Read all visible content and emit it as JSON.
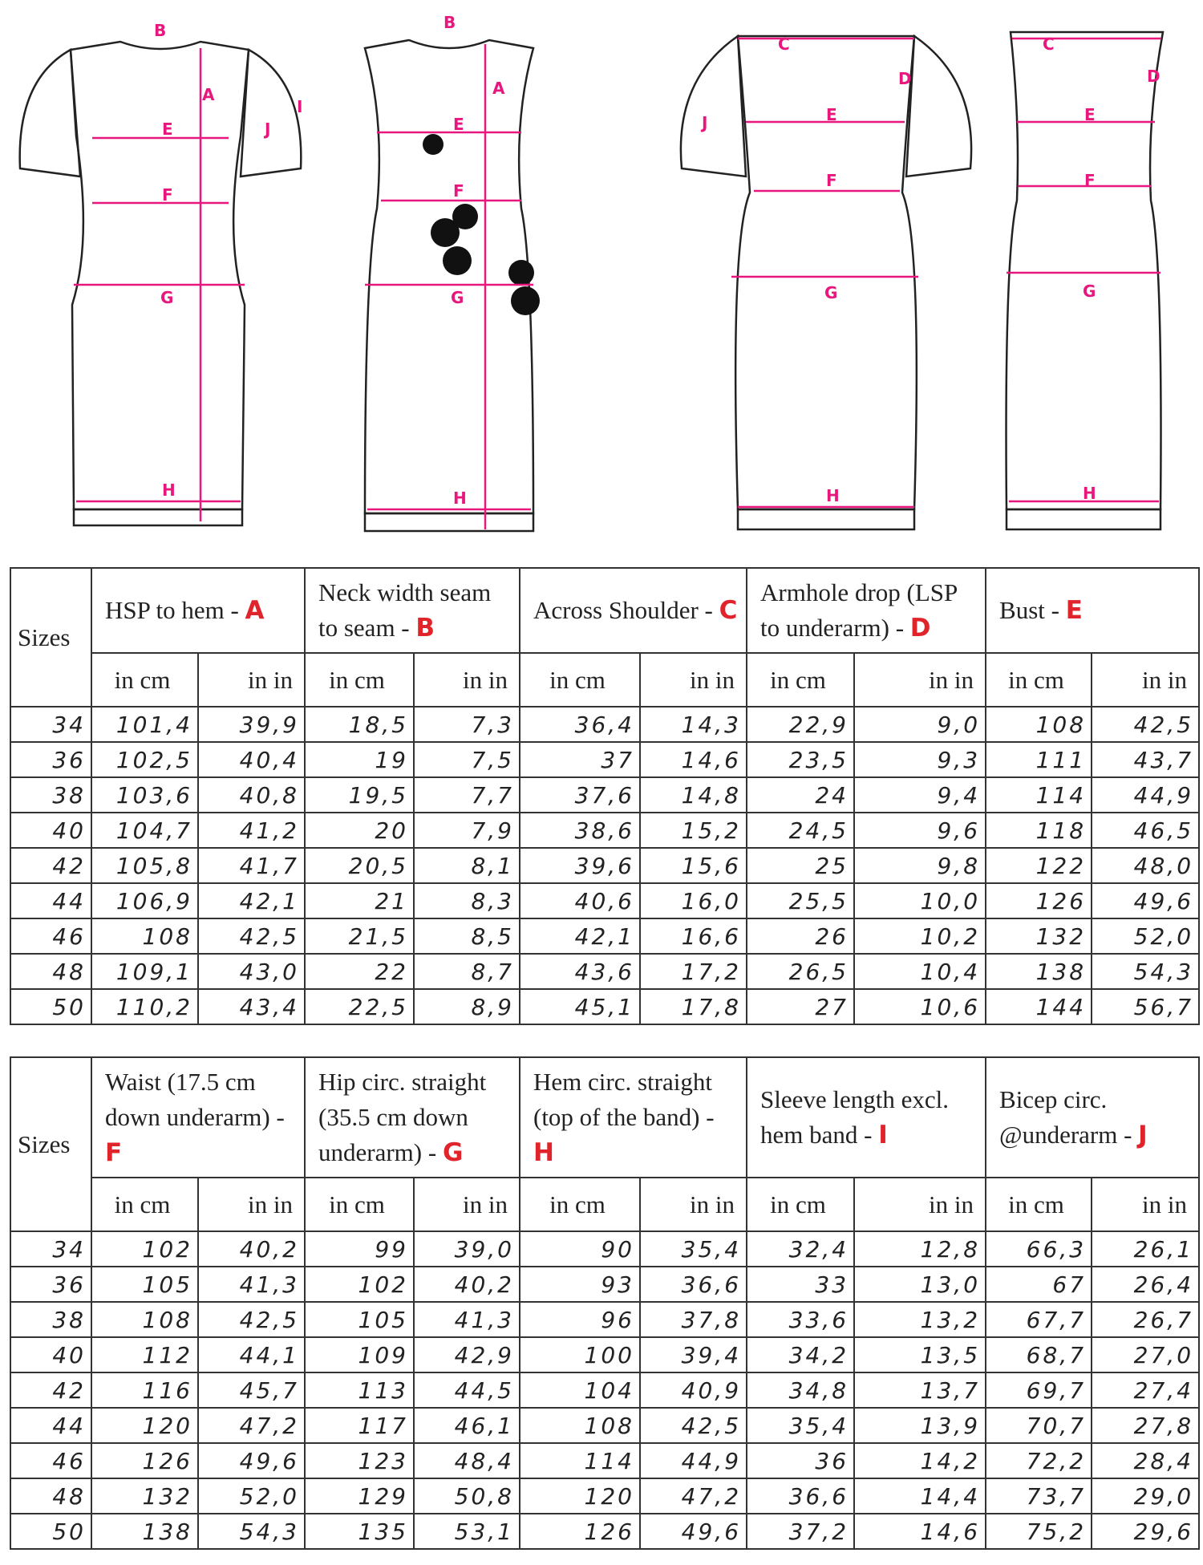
{
  "figures": {
    "labels": [
      "A",
      "B",
      "C",
      "D",
      "E",
      "F",
      "G",
      "H",
      "I",
      "J"
    ],
    "accent": "#e8177e"
  },
  "sizes_label": "Sizes",
  "unit_cm": "in cm",
  "unit_in": "in in",
  "table1": {
    "columns": [
      {
        "title": "HSP to hem - ",
        "letter": "A"
      },
      {
        "title": "Neck width seam to seam - ",
        "letter": "B"
      },
      {
        "title": "Across Shoulder - ",
        "letter": "C"
      },
      {
        "title": "Armhole drop (LSP to underarm) - ",
        "letter": "D"
      },
      {
        "title": "Bust - ",
        "letter": "E"
      }
    ],
    "rows": [
      [
        "34",
        "101,4",
        "39,9",
        "18,5",
        "7,3",
        "36,4",
        "14,3",
        "22,9",
        "9,0",
        "108",
        "42,5"
      ],
      [
        "36",
        "102,5",
        "40,4",
        "19",
        "7,5",
        "37",
        "14,6",
        "23,5",
        "9,3",
        "111",
        "43,7"
      ],
      [
        "38",
        "103,6",
        "40,8",
        "19,5",
        "7,7",
        "37,6",
        "14,8",
        "24",
        "9,4",
        "114",
        "44,9"
      ],
      [
        "40",
        "104,7",
        "41,2",
        "20",
        "7,9",
        "38,6",
        "15,2",
        "24,5",
        "9,6",
        "118",
        "46,5"
      ],
      [
        "42",
        "105,8",
        "41,7",
        "20,5",
        "8,1",
        "39,6",
        "15,6",
        "25",
        "9,8",
        "122",
        "48,0"
      ],
      [
        "44",
        "106,9",
        "42,1",
        "21",
        "8,3",
        "40,6",
        "16,0",
        "25,5",
        "10,0",
        "126",
        "49,6"
      ],
      [
        "46",
        "108",
        "42,5",
        "21,5",
        "8,5",
        "42,1",
        "16,6",
        "26",
        "10,2",
        "132",
        "52,0"
      ],
      [
        "48",
        "109,1",
        "43,0",
        "22",
        "8,7",
        "43,6",
        "17,2",
        "26,5",
        "10,4",
        "138",
        "54,3"
      ],
      [
        "50",
        "110,2",
        "43,4",
        "22,5",
        "8,9",
        "45,1",
        "17,8",
        "27",
        "10,6",
        "144",
        "56,7"
      ]
    ]
  },
  "table2": {
    "columns": [
      {
        "title": "Waist (17.5 cm down underarm) - ",
        "letter": "F"
      },
      {
        "title": "Hip circ. straight (35.5 cm down underarm) - ",
        "letter": "G"
      },
      {
        "title": "Hem circ. straight (top of the band) - ",
        "letter": "H"
      },
      {
        "title": "Sleeve length excl. hem band - ",
        "letter": "I"
      },
      {
        "title": "Bicep circ. @underarm - ",
        "letter": "J"
      }
    ],
    "rows": [
      [
        "34",
        "102",
        "40,2",
        "99",
        "39,0",
        "90",
        "35,4",
        "32,4",
        "12,8",
        "66,3",
        "26,1"
      ],
      [
        "36",
        "105",
        "41,3",
        "102",
        "40,2",
        "93",
        "36,6",
        "33",
        "13,0",
        "67",
        "26,4"
      ],
      [
        "38",
        "108",
        "42,5",
        "105",
        "41,3",
        "96",
        "37,8",
        "33,6",
        "13,2",
        "67,7",
        "26,7"
      ],
      [
        "40",
        "112",
        "44,1",
        "109",
        "42,9",
        "100",
        "39,4",
        "34,2",
        "13,5",
        "68,7",
        "27,0"
      ],
      [
        "42",
        "116",
        "45,7",
        "113",
        "44,5",
        "104",
        "40,9",
        "34,8",
        "13,7",
        "69,7",
        "27,4"
      ],
      [
        "44",
        "120",
        "47,2",
        "117",
        "46,1",
        "108",
        "42,5",
        "35,4",
        "13,9",
        "70,7",
        "27,8"
      ],
      [
        "46",
        "126",
        "49,6",
        "123",
        "48,4",
        "114",
        "44,9",
        "36",
        "14,2",
        "72,2",
        "28,4"
      ],
      [
        "48",
        "132",
        "52,0",
        "129",
        "50,8",
        "120",
        "47,2",
        "36,6",
        "14,4",
        "73,7",
        "29,0"
      ],
      [
        "50",
        "138",
        "54,3",
        "135",
        "53,1",
        "126",
        "49,6",
        "37,2",
        "14,6",
        "75,2",
        "29,6"
      ]
    ]
  }
}
